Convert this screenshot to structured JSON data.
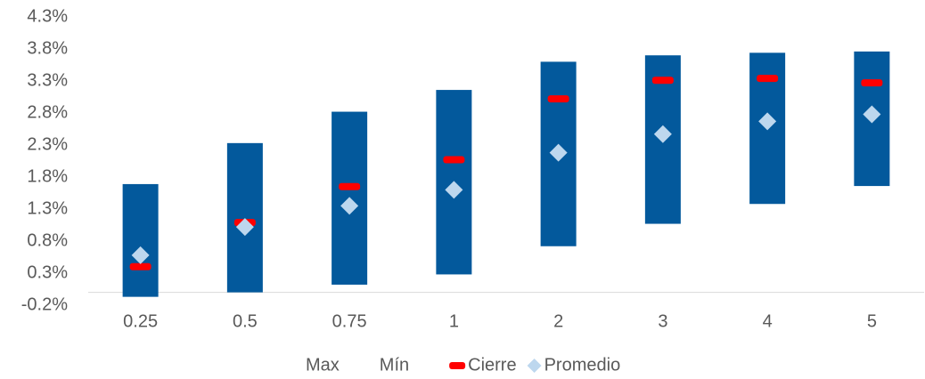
{
  "chart_data": {
    "type": "bar",
    "categories": [
      "0.25",
      "0.5",
      "0.75",
      "1",
      "2",
      "3",
      "4",
      "5"
    ],
    "bar_color": "#03599c",
    "series": [
      {
        "name": "Max",
        "marker": "none",
        "values": [
          1.69,
          2.33,
          2.82,
          3.16,
          3.6,
          3.7,
          3.74,
          3.76
        ]
      },
      {
        "name": "Mín",
        "marker": "none",
        "values": [
          -0.07,
          0.0,
          0.12,
          0.28,
          0.72,
          1.07,
          1.38,
          1.66
        ]
      },
      {
        "name": "Cierre",
        "marker": "dash",
        "color": "#ff0000",
        "values": [
          0.4,
          1.09,
          1.65,
          2.07,
          3.02,
          3.31,
          3.34,
          3.27
        ]
      },
      {
        "name": "Promedio",
        "marker": "diamond",
        "color": "#bdd7ee",
        "values": [
          0.58,
          1.02,
          1.35,
          1.6,
          2.18,
          2.47,
          2.67,
          2.78
        ]
      }
    ],
    "ylim": [
      -0.2,
      4.3
    ],
    "yticks": [
      {
        "value": -0.2,
        "label": "-0.2%"
      },
      {
        "value": 0.3,
        "label": "0.3%"
      },
      {
        "value": 0.8,
        "label": "0.8%"
      },
      {
        "value": 1.3,
        "label": "1.3%"
      },
      {
        "value": 1.8,
        "label": "1.8%"
      },
      {
        "value": 2.3,
        "label": "2.3%"
      },
      {
        "value": 2.8,
        "label": "2.8%"
      },
      {
        "value": 3.3,
        "label": "3.3%"
      },
      {
        "value": 3.8,
        "label": "3.8%"
      },
      {
        "value": 4.3,
        "label": "4.3%"
      }
    ],
    "grid": false,
    "legend": "bottom"
  }
}
